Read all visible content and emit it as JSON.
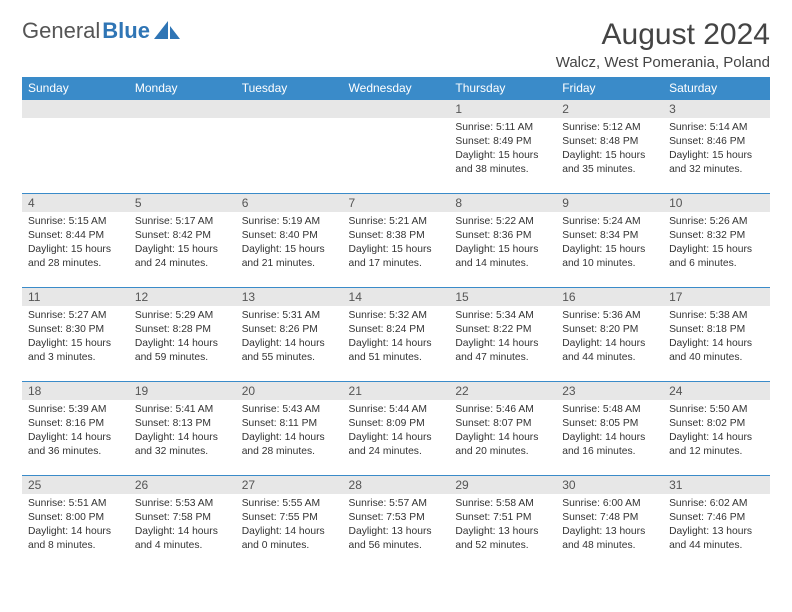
{
  "brand": {
    "part1": "General",
    "part2": "Blue"
  },
  "title": "August 2024",
  "location": "Walcz, West Pomerania, Poland",
  "colors": {
    "header_bg": "#3a8bc9",
    "header_text": "#ffffff",
    "daybar_bg": "#e7e7e7",
    "daybar_text": "#555555",
    "border": "#3a8bc9",
    "body_text": "#333333",
    "logo_gray": "#555555",
    "logo_blue": "#2f75b5",
    "page_bg": "#ffffff"
  },
  "typography": {
    "month_title_fontsize": 30,
    "location_fontsize": 15,
    "dayheader_fontsize": 12,
    "daynum_fontsize": 12,
    "cell_fontsize": 10.3
  },
  "layout": {
    "columns": 7,
    "rows": 5,
    "leading_blank_cells": 4
  },
  "day_headers": [
    "Sunday",
    "Monday",
    "Tuesday",
    "Wednesday",
    "Thursday",
    "Friday",
    "Saturday"
  ],
  "labels": {
    "sunrise": "Sunrise:",
    "sunset": "Sunset:",
    "daylight": "Daylight:"
  },
  "days": [
    {
      "n": 1,
      "sunrise": "5:11 AM",
      "sunset": "8:49 PM",
      "daylight": "15 hours and 38 minutes."
    },
    {
      "n": 2,
      "sunrise": "5:12 AM",
      "sunset": "8:48 PM",
      "daylight": "15 hours and 35 minutes."
    },
    {
      "n": 3,
      "sunrise": "5:14 AM",
      "sunset": "8:46 PM",
      "daylight": "15 hours and 32 minutes."
    },
    {
      "n": 4,
      "sunrise": "5:15 AM",
      "sunset": "8:44 PM",
      "daylight": "15 hours and 28 minutes."
    },
    {
      "n": 5,
      "sunrise": "5:17 AM",
      "sunset": "8:42 PM",
      "daylight": "15 hours and 24 minutes."
    },
    {
      "n": 6,
      "sunrise": "5:19 AM",
      "sunset": "8:40 PM",
      "daylight": "15 hours and 21 minutes."
    },
    {
      "n": 7,
      "sunrise": "5:21 AM",
      "sunset": "8:38 PM",
      "daylight": "15 hours and 17 minutes."
    },
    {
      "n": 8,
      "sunrise": "5:22 AM",
      "sunset": "8:36 PM",
      "daylight": "15 hours and 14 minutes."
    },
    {
      "n": 9,
      "sunrise": "5:24 AM",
      "sunset": "8:34 PM",
      "daylight": "15 hours and 10 minutes."
    },
    {
      "n": 10,
      "sunrise": "5:26 AM",
      "sunset": "8:32 PM",
      "daylight": "15 hours and 6 minutes."
    },
    {
      "n": 11,
      "sunrise": "5:27 AM",
      "sunset": "8:30 PM",
      "daylight": "15 hours and 3 minutes."
    },
    {
      "n": 12,
      "sunrise": "5:29 AM",
      "sunset": "8:28 PM",
      "daylight": "14 hours and 59 minutes."
    },
    {
      "n": 13,
      "sunrise": "5:31 AM",
      "sunset": "8:26 PM",
      "daylight": "14 hours and 55 minutes."
    },
    {
      "n": 14,
      "sunrise": "5:32 AM",
      "sunset": "8:24 PM",
      "daylight": "14 hours and 51 minutes."
    },
    {
      "n": 15,
      "sunrise": "5:34 AM",
      "sunset": "8:22 PM",
      "daylight": "14 hours and 47 minutes."
    },
    {
      "n": 16,
      "sunrise": "5:36 AM",
      "sunset": "8:20 PM",
      "daylight": "14 hours and 44 minutes."
    },
    {
      "n": 17,
      "sunrise": "5:38 AM",
      "sunset": "8:18 PM",
      "daylight": "14 hours and 40 minutes."
    },
    {
      "n": 18,
      "sunrise": "5:39 AM",
      "sunset": "8:16 PM",
      "daylight": "14 hours and 36 minutes."
    },
    {
      "n": 19,
      "sunrise": "5:41 AM",
      "sunset": "8:13 PM",
      "daylight": "14 hours and 32 minutes."
    },
    {
      "n": 20,
      "sunrise": "5:43 AM",
      "sunset": "8:11 PM",
      "daylight": "14 hours and 28 minutes."
    },
    {
      "n": 21,
      "sunrise": "5:44 AM",
      "sunset": "8:09 PM",
      "daylight": "14 hours and 24 minutes."
    },
    {
      "n": 22,
      "sunrise": "5:46 AM",
      "sunset": "8:07 PM",
      "daylight": "14 hours and 20 minutes."
    },
    {
      "n": 23,
      "sunrise": "5:48 AM",
      "sunset": "8:05 PM",
      "daylight": "14 hours and 16 minutes."
    },
    {
      "n": 24,
      "sunrise": "5:50 AM",
      "sunset": "8:02 PM",
      "daylight": "14 hours and 12 minutes."
    },
    {
      "n": 25,
      "sunrise": "5:51 AM",
      "sunset": "8:00 PM",
      "daylight": "14 hours and 8 minutes."
    },
    {
      "n": 26,
      "sunrise": "5:53 AM",
      "sunset": "7:58 PM",
      "daylight": "14 hours and 4 minutes."
    },
    {
      "n": 27,
      "sunrise": "5:55 AM",
      "sunset": "7:55 PM",
      "daylight": "14 hours and 0 minutes."
    },
    {
      "n": 28,
      "sunrise": "5:57 AM",
      "sunset": "7:53 PM",
      "daylight": "13 hours and 56 minutes."
    },
    {
      "n": 29,
      "sunrise": "5:58 AM",
      "sunset": "7:51 PM",
      "daylight": "13 hours and 52 minutes."
    },
    {
      "n": 30,
      "sunrise": "6:00 AM",
      "sunset": "7:48 PM",
      "daylight": "13 hours and 48 minutes."
    },
    {
      "n": 31,
      "sunrise": "6:02 AM",
      "sunset": "7:46 PM",
      "daylight": "13 hours and 44 minutes."
    }
  ]
}
